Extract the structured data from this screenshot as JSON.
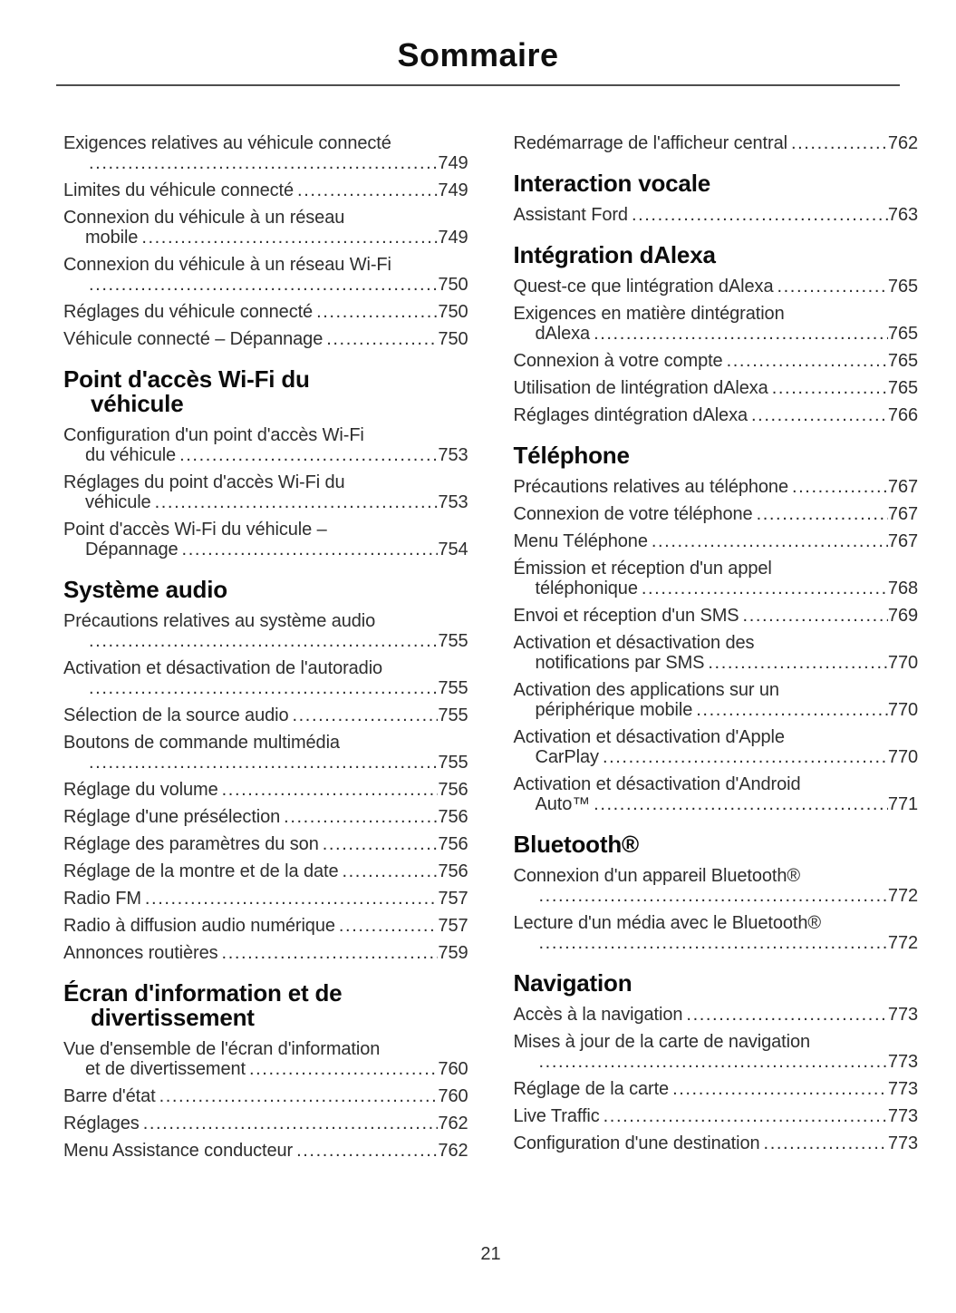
{
  "page": {
    "title": "Sommaire",
    "page_number": "21"
  },
  "toc": {
    "left": [
      {
        "id": "vehicule-connecte",
        "heading": null,
        "entries": [
          {
            "lines": [
              "Exigences relatives au véhicule connecté",
              ""
            ],
            "page": "749"
          },
          {
            "lines": [
              "Limites du véhicule connecté"
            ],
            "page": "749"
          },
          {
            "lines": [
              "Connexion du véhicule à un réseau",
              "mobile"
            ],
            "page": "749"
          },
          {
            "lines": [
              "Connexion du véhicule à un réseau Wi-Fi",
              ""
            ],
            "page": "750"
          },
          {
            "lines": [
              "Réglages du véhicule connecté"
            ],
            "page": "750"
          },
          {
            "lines": [
              "Véhicule connecté – Dépannage"
            ],
            "page": "750"
          }
        ]
      },
      {
        "id": "point-acces-wifi",
        "heading": [
          "Point d'accès Wi-Fi du",
          "véhicule"
        ],
        "entries": [
          {
            "lines": [
              "Configuration d'un point d'accès Wi-Fi",
              "du véhicule"
            ],
            "page": "753"
          },
          {
            "lines": [
              "Réglages du point d'accès Wi-Fi du",
              "véhicule"
            ],
            "page": "753"
          },
          {
            "lines": [
              "Point d'accès Wi-Fi du véhicule –",
              "Dépannage"
            ],
            "page": "754"
          }
        ]
      },
      {
        "id": "systeme-audio",
        "heading": [
          "Système audio"
        ],
        "entries": [
          {
            "lines": [
              "Précautions relatives au système audio",
              ""
            ],
            "page": "755"
          },
          {
            "lines": [
              "Activation et désactivation de l'autoradio",
              ""
            ],
            "page": "755"
          },
          {
            "lines": [
              "Sélection de la source audio"
            ],
            "page": "755"
          },
          {
            "lines": [
              "Boutons de commande multimédia",
              ""
            ],
            "page": "755"
          },
          {
            "lines": [
              "Réglage du volume"
            ],
            "page": "756"
          },
          {
            "lines": [
              "Réglage d'une présélection"
            ],
            "page": "756"
          },
          {
            "lines": [
              "Réglage des paramètres du son"
            ],
            "page": "756"
          },
          {
            "lines": [
              "Réglage de la montre et de la date"
            ],
            "page": "756"
          },
          {
            "lines": [
              "Radio FM"
            ],
            "page": "757"
          },
          {
            "lines": [
              "Radio à diffusion audio numérique"
            ],
            "page": "757"
          },
          {
            "lines": [
              "Annonces routières"
            ],
            "page": "759"
          }
        ]
      },
      {
        "id": "ecran-information",
        "heading": [
          "Écran d'information et de",
          "divertissement"
        ],
        "entries": [
          {
            "lines": [
              "Vue d'ensemble de l'écran d'information",
              "et de divertissement"
            ],
            "page": "760"
          },
          {
            "lines": [
              "Barre d'état"
            ],
            "page": "760"
          },
          {
            "lines": [
              "Réglages"
            ],
            "page": "762"
          },
          {
            "lines": [
              "Menu Assistance conducteur"
            ],
            "page": "762"
          }
        ]
      }
    ],
    "right": [
      {
        "id": "ecran-information-suite",
        "heading": null,
        "entries": [
          {
            "lines": [
              "Redémarrage de l'afficheur central"
            ],
            "page": "762"
          }
        ]
      },
      {
        "id": "interaction-vocale",
        "heading": [
          "Interaction vocale"
        ],
        "entries": [
          {
            "lines": [
              "Assistant Ford"
            ],
            "page": "763"
          }
        ]
      },
      {
        "id": "integration-alexa",
        "heading": [
          "Intégration dAlexa"
        ],
        "entries": [
          {
            "lines": [
              "Quest-ce que lintégration dAlexa"
            ],
            "page": "765"
          },
          {
            "lines": [
              "Exigences en matière dintégration",
              "dAlexa"
            ],
            "page": "765"
          },
          {
            "lines": [
              "Connexion à votre compte"
            ],
            "page": "765"
          },
          {
            "lines": [
              "Utilisation de lintégration dAlexa"
            ],
            "page": "765"
          },
          {
            "lines": [
              "Réglages dintégration dAlexa"
            ],
            "page": "766"
          }
        ]
      },
      {
        "id": "telephone",
        "heading": [
          "Téléphone"
        ],
        "entries": [
          {
            "lines": [
              "Précautions relatives au téléphone"
            ],
            "page": "767"
          },
          {
            "lines": [
              "Connexion de votre téléphone"
            ],
            "page": "767"
          },
          {
            "lines": [
              "Menu Téléphone"
            ],
            "page": "767"
          },
          {
            "lines": [
              "Émission et réception d'un appel",
              "téléphonique"
            ],
            "page": "768"
          },
          {
            "lines": [
              "Envoi et réception d'un SMS"
            ],
            "page": "769"
          },
          {
            "lines": [
              "Activation et désactivation des",
              "notifications par SMS"
            ],
            "page": "770"
          },
          {
            "lines": [
              "Activation des applications sur un",
              "périphérique mobile"
            ],
            "page": "770"
          },
          {
            "lines": [
              "Activation et désactivation d'Apple",
              "CarPlay"
            ],
            "page": "770"
          },
          {
            "lines": [
              "Activation et désactivation d'Android",
              "Auto™"
            ],
            "page": "771"
          }
        ]
      },
      {
        "id": "bluetooth",
        "heading": [
          "Bluetooth®"
        ],
        "entries": [
          {
            "lines": [
              "Connexion d'un appareil Bluetooth®",
              ""
            ],
            "page": "772"
          },
          {
            "lines": [
              "Lecture d'un média avec le Bluetooth®",
              ""
            ],
            "page": "772"
          }
        ]
      },
      {
        "id": "navigation",
        "heading": [
          "Navigation"
        ],
        "entries": [
          {
            "lines": [
              "Accès à la navigation"
            ],
            "page": "773"
          },
          {
            "lines": [
              "Mises à jour de la carte de navigation",
              ""
            ],
            "page": "773"
          },
          {
            "lines": [
              "Réglage de la carte"
            ],
            "page": "773"
          },
          {
            "lines": [
              "Live Traffic"
            ],
            "page": "773"
          },
          {
            "lines": [
              "Configuration d'une destination"
            ],
            "page": "773"
          }
        ]
      }
    ]
  }
}
